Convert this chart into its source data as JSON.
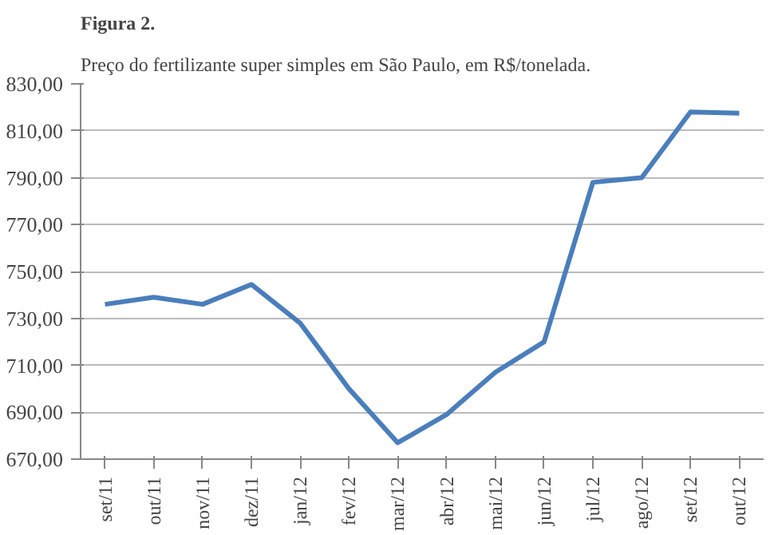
{
  "chart_data": {
    "type": "line",
    "title": "Figura 2.",
    "subtitle": "Preço do fertilizante super simples em São Paulo, em R$/tonelada.",
    "categories": [
      "set/11",
      "out/11",
      "nov/11",
      "dez/11",
      "jan/12",
      "fev/12",
      "mar/12",
      "abr/12",
      "mai/12",
      "jun/12",
      "jul/12",
      "ago/12",
      "set/12",
      "out/12"
    ],
    "series": [
      {
        "color": "#4a7ebb",
        "values": [
          736,
          739,
          736,
          744.5,
          728,
          700,
          677,
          689,
          707,
          720,
          788,
          790,
          818,
          817.5
        ]
      }
    ],
    "ylim": [
      670,
      830
    ],
    "yticks": [
      {
        "value": 670,
        "label": "670,00"
      },
      {
        "value": 690,
        "label": "690,00"
      },
      {
        "value": 710,
        "label": "710,00"
      },
      {
        "value": 730,
        "label": "730,00"
      },
      {
        "value": 750,
        "label": "750,00"
      },
      {
        "value": 770,
        "label": "770,00"
      },
      {
        "value": 790,
        "label": "790,00"
      },
      {
        "value": 810,
        "label": "810,00"
      },
      {
        "value": 830,
        "label": "830,00"
      }
    ],
    "grid": "y",
    "marker": "none",
    "line_style": "solid"
  }
}
